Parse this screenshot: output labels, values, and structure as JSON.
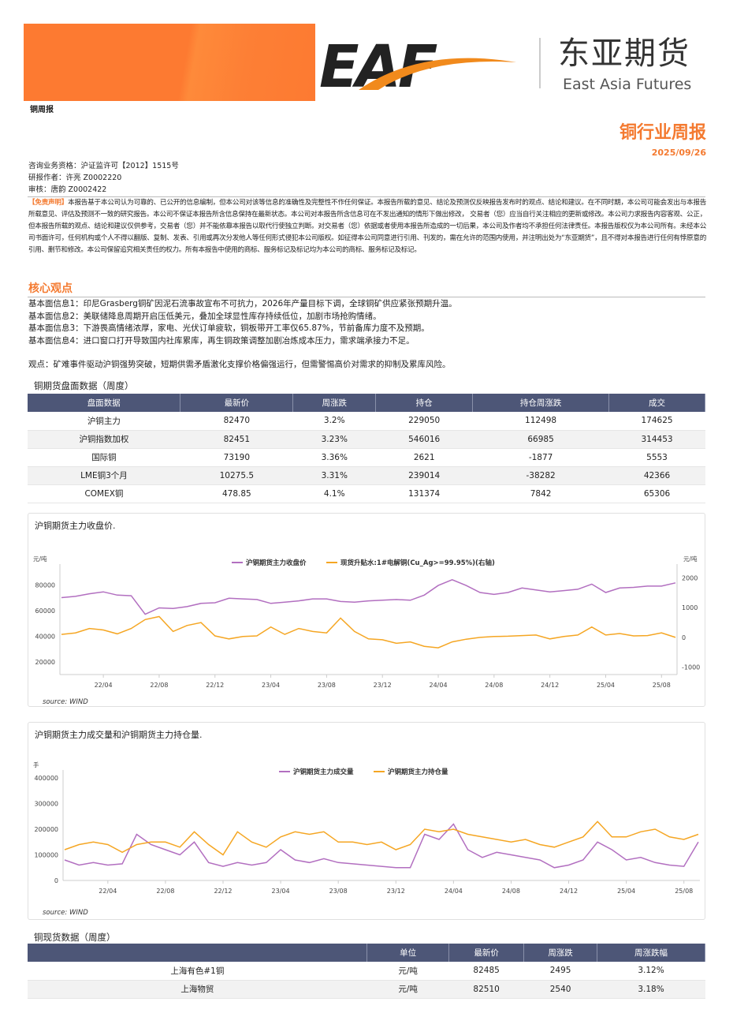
{
  "header": {
    "logo_letters": "EAF",
    "logo_cn": "东亚期货",
    "logo_en": "East Asia Futures",
    "report_tag": "铜周报",
    "title": "铜行业周报",
    "date": "2025/09/26"
  },
  "info": [
    "咨询业务资格：沪证监许可【2012】1515号",
    "研报作者：许亮 Z0002220",
    "审核：唐韵 Z0002422"
  ],
  "disclaimer": {
    "label": "【免责声明】",
    "text": "本报告基于本公司认为可靠的、已公开的信息编制，但本公司对该等信息的准确性及完整性不作任何保证。本报告所载的意见、结论及预测仅反映报告发布时的观点、结论和建议。在不同时期，本公司可能会发出与本报告所载意见、评估及预测不一致的研究报告。本公司不保证本报告所含信息保持在最新状态。本公司对本报告所含信息可在不发出通知的情形下做出修改， 交易者（您）应当自行关注相应的更新或修改。本公司力求报告内容客观、公正，但本报告所载的观点、结论和建议仅供参考，交易者（您）并不能依靠本报告以取代行使独立判断。对交易者（您）依据或者使用本报告所造成的一切后果，本公司及作者均不承担任何法律责任。本报告版权仅为本公司所有。未经本公司书面许可，任何机构或个人不得以翻版、复制、发表、引用或再次分发他人等任何形式侵犯本公司版权。如征得本公司同意进行引用、刊发的，需在允许的范围内使用，并注明出处为“东亚期货”，且不得对本报告进行任何有悖原意的引用、删节和修改。本公司保留追究相关责任的权力。所有本报告中使用的商标、服务标记及标记均为本公司的商标、服务标记及标记。"
  },
  "core": {
    "heading": "核心观点",
    "items": [
      "基本面信息1：印尼Grasberg铜矿因泥石流事故宣布不可抗力，2026年产量目标下调，全球铜矿供应紧张预期升温。",
      "基本面信息2：美联储降息周期开启压低美元，叠加全球显性库存持续低位，加剧市场抢购情绪。",
      "基本面信息3：下游畏高情绪浓厚，家电、光伏订单疲软，铜板带开工率仅65.87%，节前备库力度不及预期。",
      "基本面信息4：进口窗口打开导致国内社库累库，再生铜政策调整加剧冶炼成本压力，需求端承接力不足。"
    ],
    "view": "观点：矿难事件驱动沪铜强势突破，短期供需矛盾激化支撑价格偏强运行，但需警惕高价对需求的抑制及累库风险。"
  },
  "futures_table": {
    "title": "铜期货盘面数据（周度）",
    "headers": [
      "盘面数据",
      "最新价",
      "周涨跌",
      "持仓",
      "持仓周涨跌",
      "成交"
    ],
    "rows": [
      [
        "沪铜主力",
        "82470",
        "3.2%",
        "229050",
        "112498",
        "174625"
      ],
      [
        "沪铜指数加权",
        "82451",
        "3.23%",
        "546016",
        "66985",
        "314453"
      ],
      [
        "国际铜",
        "73190",
        "3.36%",
        "2621",
        "-1877",
        "5553"
      ],
      [
        "LME铜3个月",
        "10275.5",
        "3.31%",
        "239014",
        "-38282",
        "42366"
      ],
      [
        "COMEX铜",
        "478.85",
        "4.1%",
        "131374",
        "7842",
        "65306"
      ]
    ]
  },
  "spot_table": {
    "title": "铜现货数据（周度）",
    "headers": [
      "",
      "单位",
      "最新价",
      "周涨跌",
      "周涨跌幅"
    ],
    "rows": [
      [
        "上海有色#1铜",
        "元/吨",
        "82485",
        "2495",
        "3.12%"
      ],
      [
        "上海物贸",
        "元/吨",
        "82510",
        "2540",
        "3.18%"
      ]
    ]
  },
  "colors": {
    "accent": "#f47a30",
    "header_bg": "#4d5677",
    "purple": "#b26fc0",
    "orange": "#f5a623"
  },
  "chart_data": [
    {
      "type": "line",
      "title": "沪铜期货主力收盘价.",
      "source": "source:  WIND",
      "ylabel_left": "元/吨",
      "ylabel_right": "元/吨",
      "ylim": [
        10000,
        90000
      ],
      "ylim_right": [
        -1250,
        2200
      ],
      "yticks": [
        20000,
        40000,
        60000,
        80000
      ],
      "yticks_right": [
        -1000,
        0,
        1000,
        2000
      ],
      "xticks": [
        "22/04",
        "22/08",
        "22/12",
        "23/04",
        "23/08",
        "23/12",
        "24/04",
        "24/08",
        "24/12",
        "25/04",
        "25/08"
      ],
      "x_start": "2022-01",
      "x_end": "2025-09",
      "series": [
        {
          "name": "沪铜期货主力收盘价",
          "axis": "left",
          "color": "#b26fc0",
          "values": [
            70000,
            71000,
            73000,
            74500,
            72000,
            71500,
            57000,
            62000,
            61500,
            63000,
            65500,
            66000,
            69500,
            69000,
            68500,
            65500,
            66500,
            67500,
            69000,
            69000,
            67000,
            66500,
            67500,
            68000,
            68500,
            68000,
            72000,
            79500,
            84000,
            79500,
            74000,
            72500,
            74000,
            77500,
            76000,
            74500,
            75500,
            76500,
            80500,
            74000,
            77500,
            78000,
            79000,
            79000,
            81500
          ]
        },
        {
          "name": "现货升贴水:1#电解铜(Cu_Ag>=99.95%)(右轴)",
          "axis": "right",
          "color": "#f5a623",
          "values": [
            100,
            150,
            300,
            250,
            120,
            300,
            600,
            700,
            200,
            400,
            500,
            50,
            -50,
            30,
            50,
            350,
            100,
            300,
            200,
            150,
            650,
            200,
            -50,
            -80,
            -200,
            -150,
            -300,
            -350,
            -150,
            -60,
            0,
            30,
            40,
            60,
            80,
            -50,
            30,
            80,
            350,
            80,
            130,
            50,
            60,
            150,
            0
          ]
        }
      ]
    },
    {
      "type": "line",
      "title": "沪铜期货主力成交量和沪铜期货主力持仓量.",
      "source": "source:  WIND",
      "ylabel_left": "手",
      "ylim": [
        0,
        400000
      ],
      "yticks": [
        0,
        100000,
        200000,
        300000,
        400000
      ],
      "xticks": [
        "22/04",
        "22/08",
        "22/12",
        "23/04",
        "23/08",
        "23/12",
        "24/04",
        "24/08",
        "24/12",
        "25/04",
        "25/08"
      ],
      "x_start": "2022-01",
      "x_end": "2025-09",
      "series": [
        {
          "name": "沪铜期货主力成交量",
          "axis": "left",
          "color": "#b26fc0",
          "values": [
            80000,
            60000,
            70000,
            60000,
            65000,
            180000,
            140000,
            120000,
            100000,
            150000,
            70000,
            55000,
            70000,
            60000,
            70000,
            120000,
            80000,
            70000,
            85000,
            70000,
            65000,
            60000,
            55000,
            50000,
            50000,
            180000,
            160000,
            220000,
            120000,
            90000,
            110000,
            100000,
            90000,
            80000,
            50000,
            60000,
            80000,
            150000,
            120000,
            80000,
            90000,
            70000,
            60000,
            55000,
            150000
          ]
        },
        {
          "name": "沪铜期货主力持仓量",
          "axis": "left",
          "color": "#f5a623",
          "values": [
            120000,
            140000,
            150000,
            140000,
            110000,
            140000,
            150000,
            150000,
            130000,
            190000,
            140000,
            100000,
            190000,
            150000,
            130000,
            170000,
            190000,
            180000,
            190000,
            150000,
            150000,
            140000,
            150000,
            120000,
            140000,
            200000,
            190000,
            200000,
            180000,
            170000,
            160000,
            150000,
            160000,
            140000,
            130000,
            150000,
            170000,
            230000,
            170000,
            170000,
            190000,
            200000,
            170000,
            160000,
            180000
          ]
        }
      ]
    }
  ]
}
